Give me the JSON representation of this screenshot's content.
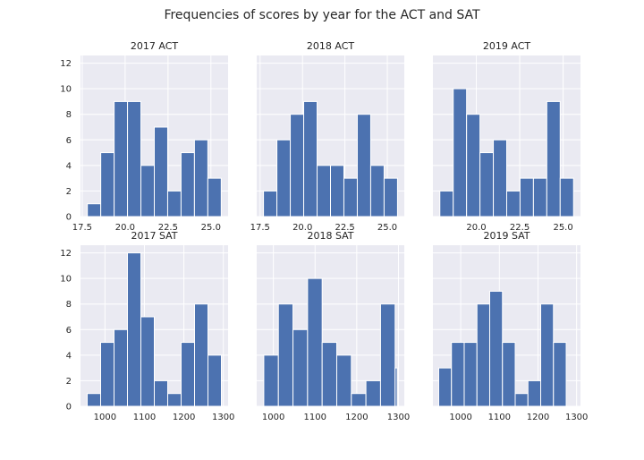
{
  "title": "Frequencies of scores by year for the ACT and SAT",
  "colors": {
    "bar": "#4c72b0",
    "panel": "#eaeaf2",
    "grid": "#ffffff"
  },
  "chart_data": [
    {
      "type": "bar",
      "title": "2017 ACT",
      "bin_edges": [
        17.8,
        18.58,
        19.36,
        20.14,
        20.92,
        21.7,
        22.48,
        23.26,
        24.04,
        24.82,
        25.6
      ],
      "values": [
        1,
        5,
        9,
        9,
        4,
        7,
        2,
        5,
        6,
        3
      ],
      "xticks": [
        17.5,
        20.0,
        22.5,
        25.0
      ],
      "xtick_labels": [
        "17.5",
        "20.0",
        "22.5",
        "25.0"
      ],
      "xlim": [
        17.4,
        26.0
      ],
      "ylim": [
        0,
        12.6
      ],
      "yticks": [
        0,
        2,
        4,
        6,
        8,
        10,
        12
      ],
      "ytick_labels": [
        "0",
        "2",
        "4",
        "6",
        "8",
        "10",
        "12"
      ]
    },
    {
      "type": "bar",
      "title": "2018 ACT",
      "bin_edges": [
        17.7,
        18.49,
        19.28,
        20.07,
        20.86,
        21.65,
        22.44,
        23.23,
        24.02,
        24.81,
        25.6
      ],
      "values": [
        2,
        6,
        8,
        9,
        4,
        4,
        3,
        8,
        4,
        3
      ],
      "xticks": [
        17.5,
        20.0,
        22.5,
        25.0
      ],
      "xtick_labels": [
        "17.5",
        "20.0",
        "22.5",
        "25.0"
      ],
      "xlim": [
        17.3,
        26.0
      ],
      "ylim": [
        0,
        12.6
      ],
      "yticks": [
        0,
        2,
        4,
        6,
        8,
        10,
        12
      ],
      "ytick_labels": []
    },
    {
      "type": "bar",
      "title": "2019 ACT",
      "bin_edges": [
        17.9,
        18.67,
        19.44,
        20.21,
        20.98,
        21.75,
        22.52,
        23.29,
        24.06,
        24.83,
        25.6
      ],
      "values": [
        2,
        10,
        8,
        5,
        6,
        2,
        3,
        3,
        9,
        3
      ],
      "xticks": [
        20.0,
        22.5,
        25.0
      ],
      "xtick_labels": [
        "20.0",
        "22.5",
        "25.0"
      ],
      "xlim": [
        17.5,
        26.0
      ],
      "ylim": [
        0,
        12.6
      ],
      "yticks": [
        0,
        2,
        4,
        6,
        8,
        10,
        12
      ],
      "ytick_labels": []
    },
    {
      "type": "bar",
      "title": "2017 SAT",
      "bin_edges": [
        955,
        989,
        1023,
        1057,
        1091,
        1125,
        1159,
        1193,
        1227,
        1261,
        1295
      ],
      "values": [
        1,
        5,
        6,
        12,
        7,
        2,
        1,
        5,
        8,
        4
      ],
      "xticks": [
        1000,
        1100,
        1200,
        1300
      ],
      "xtick_labels": [
        "1000",
        "1100",
        "1200",
        "1300"
      ],
      "xlim": [
        938,
        1312
      ],
      "ylim": [
        0,
        12.6
      ],
      "yticks": [
        0,
        2,
        4,
        6,
        8,
        10,
        12
      ],
      "ytick_labels": [
        "0",
        "2",
        "4",
        "6",
        "8",
        "10",
        "12"
      ]
    },
    {
      "type": "bar",
      "title": "2018 SAT",
      "bin_edges": [
        977,
        1012,
        1047,
        1082,
        1117,
        1152,
        1187,
        1222,
        1257,
        1292,
        1297
      ],
      "values": [
        4,
        8,
        6,
        10,
        5,
        4,
        1,
        2,
        8,
        3
      ],
      "xticks": [
        1000,
        1100,
        1200,
        1300
      ],
      "xtick_labels": [
        "1000",
        "1100",
        "1200",
        "1300"
      ],
      "xlim": [
        960,
        1314
      ],
      "ylim": [
        0,
        12.6
      ],
      "yticks": [
        0,
        2,
        4,
        6,
        8,
        10,
        12
      ],
      "ytick_labels": []
    },
    {
      "type": "bar",
      "title": "2019 SAT",
      "bin_edges": [
        943,
        976,
        1009,
        1042,
        1075,
        1108,
        1141,
        1174,
        1207,
        1240,
        1273
      ],
      "values": [
        3,
        5,
        5,
        8,
        9,
        5,
        1,
        2,
        8,
        5
      ],
      "xticks": [
        1000,
        1100,
        1200,
        1300
      ],
      "xtick_labels": [
        "1000",
        "1100",
        "1200",
        "1300"
      ],
      "xlim": [
        928,
        1310
      ],
      "ylim": [
        0,
        12.6
      ],
      "yticks": [
        0,
        2,
        4,
        6,
        8,
        10,
        12
      ],
      "ytick_labels": []
    }
  ]
}
